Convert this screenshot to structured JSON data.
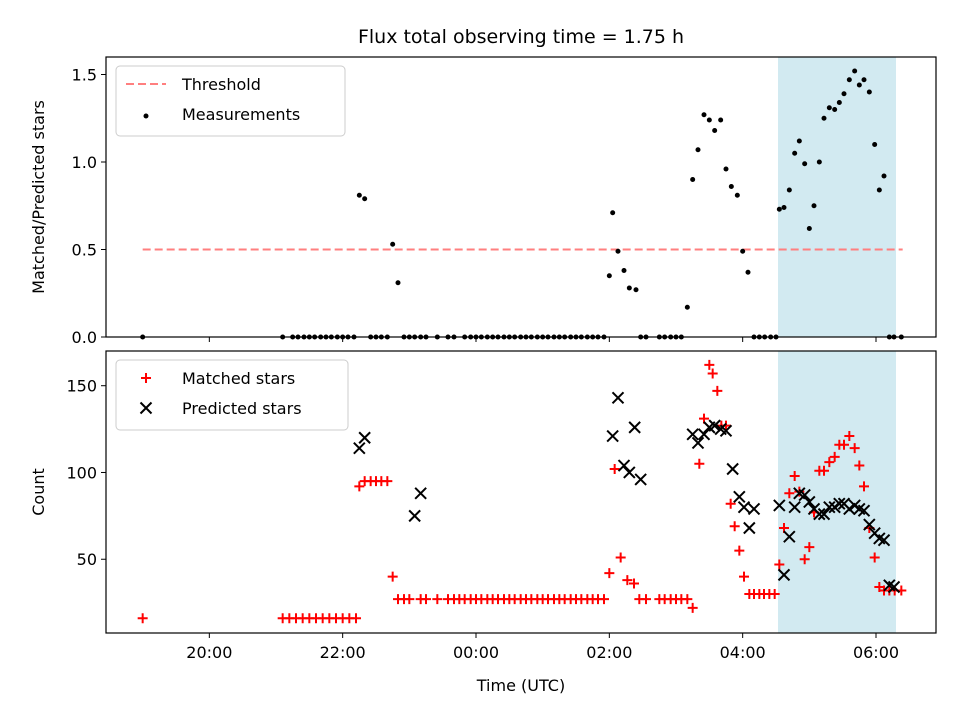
{
  "title": "Flux total observing time = 1.75 h",
  "chart_data": [
    {
      "type": "scatter",
      "ylabel": "Matched/Predicted stars",
      "xlim": [
        -5.55,
        6.9
      ],
      "ylim": [
        0,
        1.6
      ],
      "yticks": [
        0.0,
        0.5,
        1.0,
        1.5
      ],
      "ytick_labels": [
        "0.0",
        "0.5",
        "1.0",
        "1.5"
      ],
      "grid": false,
      "legend_position": "top-left",
      "shaded_interval": {
        "x": [
          4.53,
          6.3
        ],
        "color": "#add8e6"
      },
      "threshold": {
        "name": "Threshold",
        "value": 0.5,
        "x": [
          -5.0,
          6.4
        ],
        "color": "#ff7f7f",
        "style": "dashed"
      },
      "series": [
        {
          "name": "Measurements",
          "marker": "dot",
          "color": "#000000",
          "x": [
            -5.0,
            -2.9,
            -2.75,
            -2.67,
            -2.58,
            -2.5,
            -2.42,
            -2.33,
            -2.25,
            -2.17,
            -2.08,
            -2.0,
            -1.92,
            -1.83,
            -1.75,
            -1.67,
            -1.58,
            -1.5,
            -1.42,
            -1.33,
            -1.25,
            -1.17,
            -1.08,
            -1.0,
            -0.92,
            -0.83,
            -0.75,
            -0.58,
            -0.42,
            -0.33,
            -0.17,
            -0.08,
            0.0,
            0.08,
            0.17,
            0.25,
            0.33,
            0.42,
            0.5,
            0.58,
            0.67,
            0.75,
            0.83,
            0.92,
            1.0,
            1.08,
            1.17,
            1.25,
            1.33,
            1.42,
            1.5,
            1.58,
            1.67,
            1.75,
            1.83,
            1.92,
            2.0,
            2.05,
            2.13,
            2.22,
            2.3,
            2.4,
            2.47,
            2.55,
            2.75,
            2.83,
            2.92,
            3.0,
            3.08,
            3.17,
            3.25,
            3.33,
            3.42,
            3.5,
            3.58,
            3.67,
            3.75,
            3.83,
            3.92,
            4.0,
            4.08,
            4.17,
            4.25,
            4.33,
            4.42,
            4.5,
            4.55,
            4.62,
            4.7,
            4.78,
            4.85,
            4.93,
            5.0,
            5.07,
            5.15,
            5.22,
            5.3,
            5.38,
            5.45,
            5.52,
            5.6,
            5.68,
            5.75,
            5.82,
            5.9,
            5.98,
            6.05,
            6.12,
            6.2,
            6.27,
            6.38
          ],
          "y": [
            0.0,
            0.0,
            0.0,
            0.0,
            0.0,
            0.0,
            0.0,
            0.0,
            0.0,
            0.0,
            0.0,
            0.0,
            0.0,
            0.0,
            0.81,
            0.79,
            0.0,
            0.0,
            0.0,
            0.0,
            0.53,
            0.31,
            0.0,
            0.0,
            0.0,
            0.0,
            0.0,
            0.0,
            0.0,
            0.0,
            0.0,
            0.0,
            0.0,
            0.0,
            0.0,
            0.0,
            0.0,
            0.0,
            0.0,
            0.0,
            0.0,
            0.0,
            0.0,
            0.0,
            0.0,
            0.0,
            0.0,
            0.0,
            0.0,
            0.0,
            0.0,
            0.0,
            0.0,
            0.0,
            0.0,
            0.0,
            0.35,
            0.71,
            0.49,
            0.38,
            0.28,
            0.27,
            0.0,
            0.0,
            0.0,
            0.0,
            0.0,
            0.0,
            0.0,
            0.17,
            0.9,
            1.07,
            1.27,
            1.24,
            1.18,
            1.24,
            0.96,
            0.86,
            0.81,
            0.49,
            0.37,
            0.0,
            0.0,
            0.0,
            0.0,
            0.0,
            0.73,
            0.74,
            0.84,
            1.05,
            1.12,
            0.99,
            0.62,
            0.75,
            1.0,
            1.25,
            1.31,
            1.3,
            1.34,
            1.39,
            1.47,
            1.52,
            1.44,
            1.47,
            1.4,
            1.1,
            0.84,
            0.92,
            0.0,
            0.0,
            0.0
          ]
        }
      ]
    },
    {
      "type": "scatter",
      "xlabel": "Time (UTC)",
      "ylabel": "Count",
      "xlim": [
        -5.55,
        6.9
      ],
      "ylim": [
        7.5,
        170
      ],
      "yticks": [
        50,
        100,
        150
      ],
      "ytick_labels": [
        "50",
        "100",
        "150"
      ],
      "xticks": [
        -4,
        -2,
        0,
        2,
        4,
        6
      ],
      "xtick_labels": [
        "20:00",
        "22:00",
        "00:00",
        "02:00",
        "04:00",
        "06:00"
      ],
      "grid": false,
      "legend_position": "top-left",
      "shaded_interval": {
        "x": [
          4.53,
          6.3
        ],
        "color": "#add8e6"
      },
      "series": [
        {
          "name": "Matched stars",
          "marker": "plus",
          "color": "#ff0000",
          "x": [
            -5.0,
            -2.9,
            -2.8,
            -2.7,
            -2.6,
            -2.5,
            -2.4,
            -2.3,
            -2.2,
            -2.1,
            -2.0,
            -1.9,
            -1.8,
            -1.75,
            -1.67,
            -1.58,
            -1.5,
            -1.42,
            -1.33,
            -1.25,
            -1.17,
            -1.08,
            -1.0,
            -0.83,
            -0.75,
            -0.58,
            -0.42,
            -0.33,
            -0.25,
            -0.17,
            -0.08,
            0.0,
            0.08,
            0.17,
            0.25,
            0.33,
            0.42,
            0.5,
            0.58,
            0.67,
            0.75,
            0.83,
            0.92,
            1.0,
            1.08,
            1.17,
            1.25,
            1.33,
            1.42,
            1.5,
            1.58,
            1.67,
            1.75,
            1.83,
            1.92,
            2.0,
            2.08,
            2.17,
            2.27,
            2.37,
            2.45,
            2.55,
            2.75,
            2.83,
            2.92,
            3.0,
            3.08,
            3.17,
            3.25,
            3.35,
            3.42,
            3.5,
            3.55,
            3.62,
            3.68,
            3.75,
            3.82,
            3.88,
            3.95,
            4.02,
            4.1,
            4.17,
            4.25,
            4.32,
            4.4,
            4.48,
            4.55,
            4.62,
            4.7,
            4.78,
            4.85,
            4.93,
            5.0,
            5.07,
            5.15,
            5.22,
            5.3,
            5.38,
            5.45,
            5.52,
            5.6,
            5.68,
            5.75,
            5.82,
            5.9,
            5.98,
            6.05,
            6.12,
            6.2,
            6.28,
            6.38
          ],
          "y": [
            16,
            16,
            16,
            16,
            16,
            16,
            16,
            16,
            16,
            16,
            16,
            16,
            16,
            92,
            95,
            95,
            95,
            95,
            95,
            40,
            27,
            27,
            27,
            27,
            27,
            27,
            27,
            27,
            27,
            27,
            27,
            27,
            27,
            27,
            27,
            27,
            27,
            27,
            27,
            27,
            27,
            27,
            27,
            27,
            27,
            27,
            27,
            27,
            27,
            27,
            27,
            27,
            27,
            27,
            27,
            42,
            102,
            51,
            38,
            36,
            27,
            27,
            27,
            27,
            27,
            27,
            27,
            27,
            22,
            105,
            131,
            162,
            157,
            147,
            127,
            127,
            82,
            69,
            55,
            40,
            30,
            30,
            30,
            30,
            30,
            30,
            47,
            68,
            88,
            98,
            89,
            50,
            57,
            77,
            101,
            101,
            106,
            109,
            116,
            116,
            121,
            114,
            104,
            92,
            68,
            51,
            34,
            32,
            32,
            32,
            32
          ],
          "_note": ""
        },
        {
          "name": "Predicted stars",
          "marker": "x",
          "color": "#000000",
          "x": [
            -1.75,
            -1.67,
            -0.92,
            -0.83,
            2.05,
            2.13,
            2.22,
            2.3,
            2.38,
            2.47,
            3.25,
            3.33,
            3.42,
            3.5,
            3.58,
            3.67,
            3.75,
            3.85,
            3.95,
            4.02,
            4.1,
            4.17,
            4.55,
            4.62,
            4.7,
            4.78,
            4.85,
            4.93,
            5.0,
            5.07,
            5.15,
            5.22,
            5.3,
            5.38,
            5.45,
            5.52,
            5.6,
            5.68,
            5.75,
            5.82,
            5.9,
            5.98,
            6.05,
            6.12,
            6.2,
            6.27
          ],
          "y": [
            114,
            120,
            75,
            88,
            121,
            143,
            104,
            100,
            126,
            96,
            122,
            117,
            122,
            126,
            127,
            125,
            124,
            102,
            86,
            80,
            68,
            79,
            81,
            41,
            63,
            80,
            88,
            87,
            83,
            79,
            76,
            76,
            80,
            80,
            82,
            82,
            79,
            81,
            79,
            78,
            70,
            65,
            62,
            61,
            35,
            34
          ]
        }
      ]
    }
  ]
}
